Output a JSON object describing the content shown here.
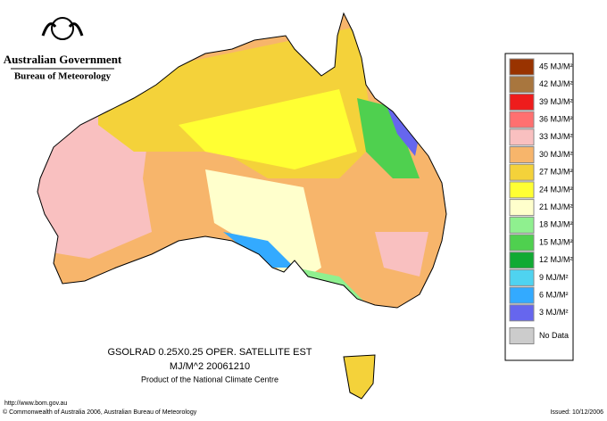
{
  "header": {
    "title": "Australian Government",
    "subtitle": "Bureau of Meteorology"
  },
  "map": {
    "caption_line1": "GSOLRAD    0.25X0.25 OPER. SATELLITE EST",
    "caption_line2": "MJ/M^2  20061210",
    "caption_line3": "Product of the National Climate Centre"
  },
  "legend": {
    "items": [
      {
        "label": "45 MJ/M²",
        "color": "#993300"
      },
      {
        "label": "42 MJ/M²",
        "color": "#a8763e"
      },
      {
        "label": "39 MJ/M²",
        "color": "#ee1c1c"
      },
      {
        "label": "36 MJ/M²",
        "color": "#ff7070"
      },
      {
        "label": "33 MJ/M²",
        "color": "#f9c0c0"
      },
      {
        "label": "30 MJ/M²",
        "color": "#f7b56b"
      },
      {
        "label": "27 MJ/M²",
        "color": "#f4d23a"
      },
      {
        "label": "24 MJ/M²",
        "color": "#ffff33"
      },
      {
        "label": "21 MJ/M²",
        "color": "#ffffcc"
      },
      {
        "label": "18 MJ/M²",
        "color": "#8ff08f"
      },
      {
        "label": "15 MJ/M²",
        "color": "#4fd04f"
      },
      {
        "label": "12 MJ/M²",
        "color": "#11aa33"
      },
      {
        "label": "9 MJ/M²",
        "color": "#4fd3f0"
      },
      {
        "label": "6 MJ/M²",
        "color": "#33aaff"
      },
      {
        "label": "3 MJ/M²",
        "color": "#6666ee"
      },
      {
        "label": "No Data",
        "color": "#cccccc"
      }
    ]
  },
  "footer": {
    "url": "http://www.bom.gov.au",
    "copyright": "© Commonwealth of Australia 2006, Australian Bureau of Meteorology",
    "issued": "Issued: 10/12/2006"
  }
}
